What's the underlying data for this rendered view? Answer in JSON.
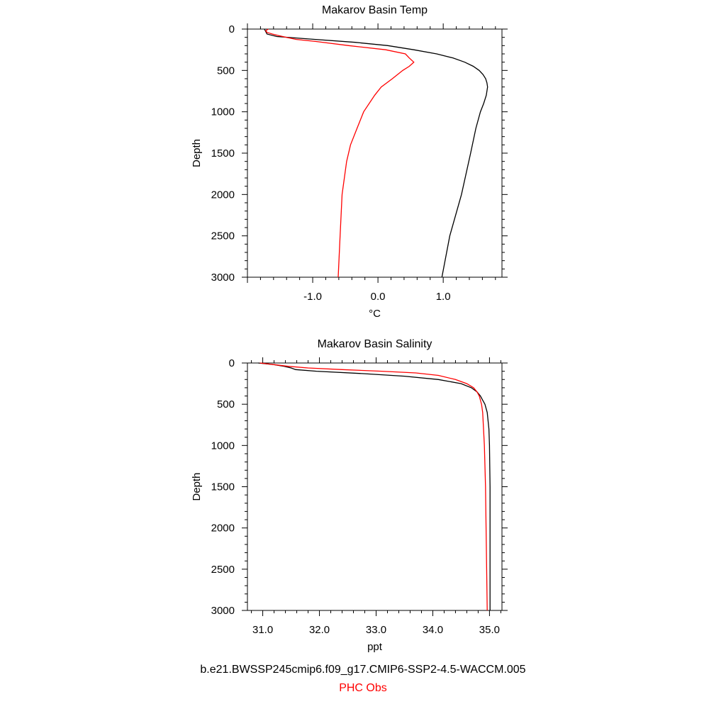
{
  "chart_data": [
    {
      "type": "line",
      "title": "Makarov Basin Temp",
      "xlabel": "°C",
      "ylabel": "Depth",
      "xlim": [
        -2.0,
        1.9
      ],
      "ylim": [
        3000,
        0
      ],
      "x_ticks": [
        -1.0,
        0.0,
        1.0
      ],
      "x_tick_labels": [
        "-1.0",
        "0.0",
        "1.0"
      ],
      "y_ticks": [
        0,
        500,
        1000,
        1500,
        2000,
        2500,
        3000
      ],
      "y_tick_labels": [
        "0",
        "500",
        "1000",
        "1500",
        "2000",
        "2500",
        "3000"
      ],
      "series": [
        {
          "name": "b.e21.BWSSP245cmip6.f09_g17.CMIP6-SSP2-4.5-WACCM.005",
          "color": "#000000",
          "depth": [
            0,
            30,
            60,
            90,
            120,
            160,
            200,
            250,
            300,
            350,
            400,
            450,
            500,
            550,
            600,
            650,
            700,
            800,
            900,
            1000,
            1200,
            1500,
            2000,
            2500,
            3000
          ],
          "values": [
            -1.74,
            -1.72,
            -1.7,
            -1.55,
            -1.05,
            -0.35,
            0.15,
            0.55,
            0.9,
            1.15,
            1.33,
            1.46,
            1.55,
            1.61,
            1.65,
            1.67,
            1.68,
            1.66,
            1.62,
            1.57,
            1.5,
            1.42,
            1.28,
            1.1,
            0.98
          ]
        },
        {
          "name": "PHC Obs",
          "color": "#ff0000",
          "depth": [
            0,
            20,
            40,
            60,
            80,
            100,
            125,
            150,
            200,
            250,
            300,
            350,
            400,
            450,
            500,
            600,
            700,
            800,
            1000,
            1200,
            1400,
            1600,
            2000,
            2500,
            3000
          ],
          "values": [
            -1.68,
            -1.72,
            -1.7,
            -1.62,
            -1.52,
            -1.4,
            -1.25,
            -0.95,
            -0.45,
            0.12,
            0.42,
            0.48,
            0.55,
            0.48,
            0.38,
            0.22,
            0.05,
            -0.05,
            -0.22,
            -0.32,
            -0.42,
            -0.48,
            -0.55,
            -0.58,
            -0.61
          ]
        }
      ],
      "grid": false,
      "legend": "none"
    },
    {
      "type": "line",
      "title": "Makarov Basin Salinity",
      "xlabel": "ppt",
      "ylabel": "Depth",
      "xlim": [
        30.73,
        35.22
      ],
      "ylim": [
        3000,
        0
      ],
      "x_ticks": [
        31.0,
        32.0,
        33.0,
        34.0,
        35.0
      ],
      "x_tick_labels": [
        "31.0",
        "32.0",
        "33.0",
        "34.0",
        "35.0"
      ],
      "y_ticks": [
        0,
        500,
        1000,
        1500,
        2000,
        2500,
        3000
      ],
      "y_tick_labels": [
        "0",
        "500",
        "1000",
        "1500",
        "2000",
        "2500",
        "3000"
      ],
      "series": [
        {
          "name": "b.e21.BWSSP245cmip6.f09_g17.CMIP6-SSP2-4.5-WACCM.005",
          "color": "#000000",
          "depth": [
            0,
            20,
            40,
            60,
            80,
            100,
            130,
            160,
            200,
            250,
            300,
            350,
            400,
            450,
            500,
            600,
            800,
            1000,
            1500,
            2000,
            2500,
            3000
          ],
          "values": [
            30.92,
            31.2,
            31.38,
            31.5,
            31.58,
            31.95,
            32.8,
            33.5,
            34.1,
            34.5,
            34.68,
            34.78,
            34.84,
            34.88,
            34.92,
            34.96,
            34.99,
            35.0,
            35.01,
            35.01,
            35.01,
            35.01
          ]
        },
        {
          "name": "PHC Obs",
          "color": "#ff0000",
          "depth": [
            0,
            20,
            40,
            60,
            80,
            100,
            120,
            150,
            200,
            250,
            300,
            350,
            400,
            500,
            600,
            1000,
            1500,
            2000,
            2500,
            3000
          ],
          "values": [
            30.95,
            31.2,
            31.45,
            31.8,
            32.4,
            33.1,
            33.7,
            34.1,
            34.4,
            34.6,
            34.72,
            34.78,
            34.82,
            34.86,
            34.88,
            34.91,
            34.93,
            34.94,
            34.95,
            34.96
          ]
        }
      ],
      "grid": false,
      "legend": "none"
    }
  ],
  "captions": {
    "model": "b.e21.BWSSP245cmip6.f09_g17.CMIP6-SSP2-4.5-WACCM.005",
    "obs": "PHC Obs",
    "obs_color": "#ff0000"
  }
}
